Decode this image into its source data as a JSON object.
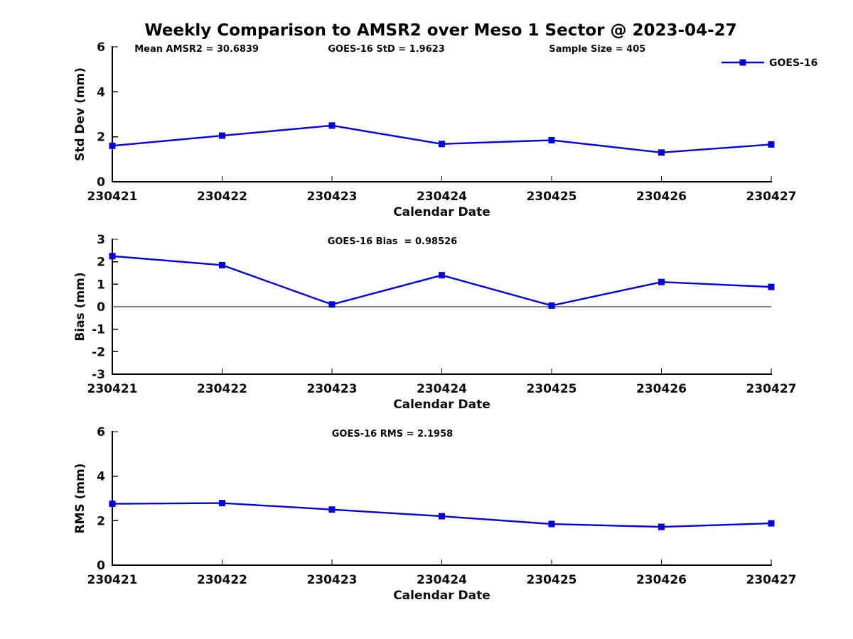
{
  "title": "Weekly Comparison to AMSR2 over Meso 1 Sector @ 2023-04-27",
  "colors": {
    "series": "#0000dd",
    "axis": "#000000",
    "background": "#ffffff",
    "text": "#000000"
  },
  "chart_data": [
    {
      "type": "line",
      "id": "std-dev",
      "annotations": [
        "Mean AMSR2 = 30.6839",
        "GOES-16 StD = 1.9623",
        "Sample Size = 405"
      ],
      "categories": [
        "230421",
        "230422",
        "230423",
        "230424",
        "230425",
        "230426",
        "230427"
      ],
      "series": [
        {
          "name": "GOES-16",
          "color": "#0000dd",
          "marker": "square",
          "values": [
            1.6,
            2.05,
            2.5,
            1.68,
            1.85,
            1.3,
            1.66
          ]
        }
      ],
      "xlabel": "Calendar Date",
      "ylabel": "Std Dev (mm)",
      "ylim": [
        0,
        6
      ],
      "yticks": [
        0,
        2,
        4,
        6
      ],
      "grid": false,
      "zero_line": false,
      "legend": {
        "show": true,
        "label": "GOES-16",
        "position": "top-right-outside"
      }
    },
    {
      "type": "line",
      "id": "bias",
      "annotations": [
        "GOES-16 Bias  = 0.98526"
      ],
      "categories": [
        "230421",
        "230422",
        "230423",
        "230424",
        "230425",
        "230426",
        "230427"
      ],
      "series": [
        {
          "name": "GOES-16",
          "color": "#0000dd",
          "marker": "square",
          "values": [
            2.25,
            1.85,
            0.1,
            1.4,
            0.05,
            1.1,
            0.88
          ]
        }
      ],
      "xlabel": "Calendar Date",
      "ylabel": "Bias (mm)",
      "ylim": [
        -3,
        3
      ],
      "yticks": [
        -3,
        -2,
        -1,
        0,
        1,
        2,
        3
      ],
      "grid": false,
      "zero_line": true,
      "legend": {
        "show": false,
        "label": "",
        "position": ""
      }
    },
    {
      "type": "line",
      "id": "rms",
      "annotations": [
        "GOES-16 RMS = 2.1958"
      ],
      "categories": [
        "230421",
        "230422",
        "230423",
        "230424",
        "230425",
        "230426",
        "230427"
      ],
      "series": [
        {
          "name": "GOES-16",
          "color": "#0000dd",
          "marker": "square",
          "values": [
            2.76,
            2.79,
            2.5,
            2.2,
            1.85,
            1.72,
            1.88
          ]
        }
      ],
      "xlabel": "Calendar Date",
      "ylabel": "RMS (mm)",
      "ylim": [
        0,
        6
      ],
      "yticks": [
        0,
        2,
        4,
        6
      ],
      "grid": false,
      "zero_line": false,
      "legend": {
        "show": false,
        "label": "",
        "position": ""
      }
    }
  ]
}
